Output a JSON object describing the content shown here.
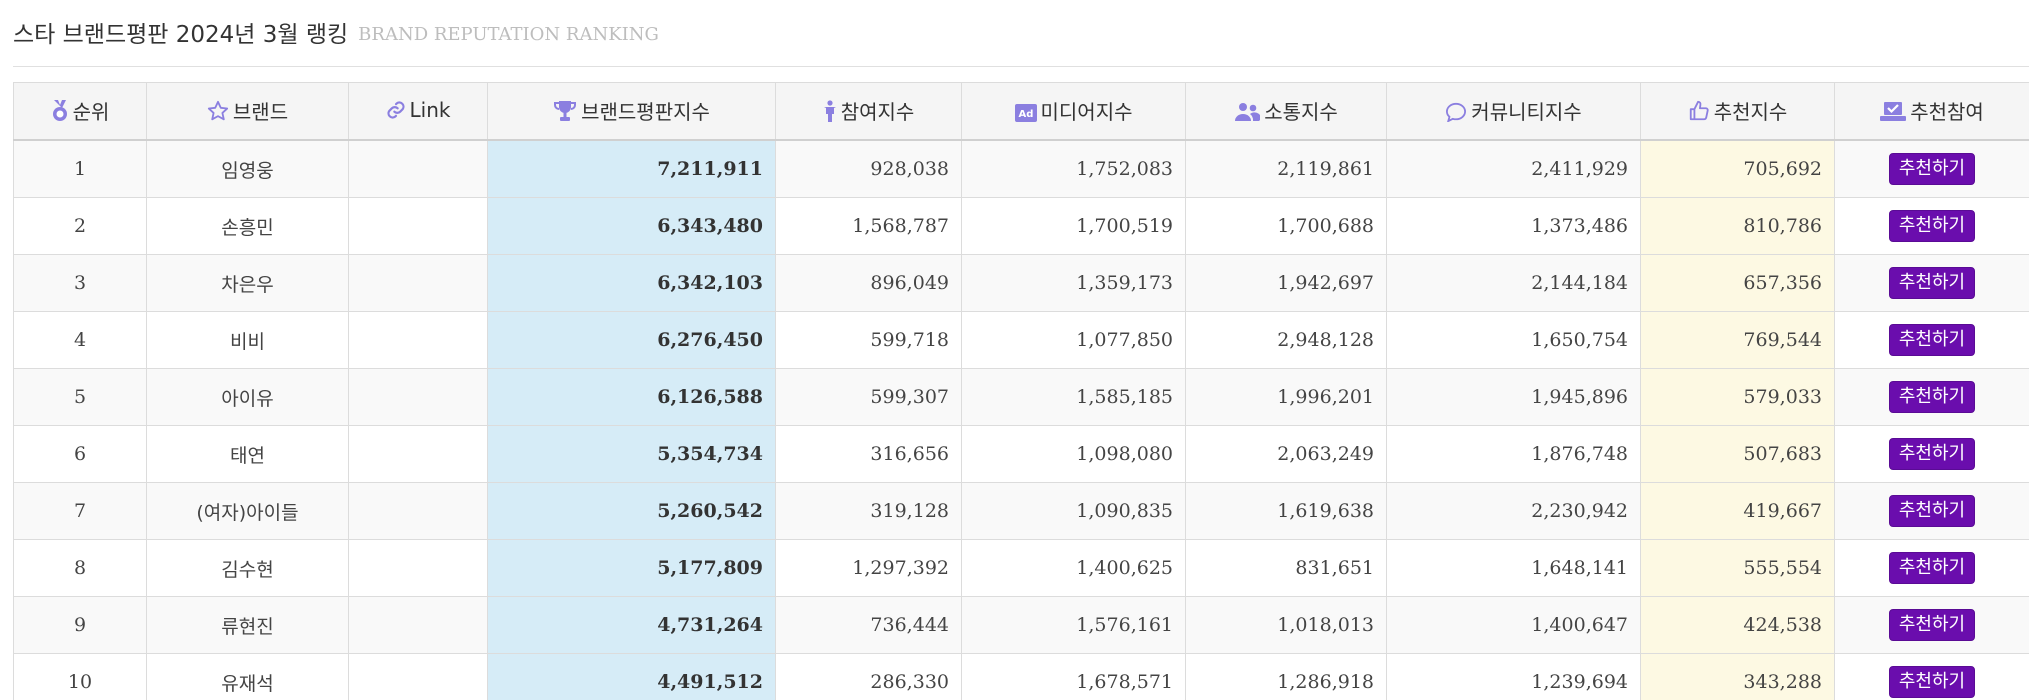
{
  "title": {
    "main": "스타 브랜드평판 2024년 3월 랭킹",
    "sub": "BRAND REPUTATION RANKING"
  },
  "colors": {
    "accent_icon": "#8b7fe0",
    "brand_score_bg": "#d6ecf7",
    "rec_score_bg": "#fdf9e3",
    "button_bg": "#6a0dad"
  },
  "columns": [
    {
      "label": "순위",
      "icon": "medal-icon"
    },
    {
      "label": "브랜드",
      "icon": "star-icon"
    },
    {
      "label": "Link",
      "icon": "link-icon"
    },
    {
      "label": "브랜드평판지수",
      "icon": "trophy-icon"
    },
    {
      "label": "참여지수",
      "icon": "person-icon"
    },
    {
      "label": "미디어지수",
      "icon": "ad-icon"
    },
    {
      "label": "소통지수",
      "icon": "users-icon"
    },
    {
      "label": "커뮤니티지수",
      "icon": "comment-icon"
    },
    {
      "label": "추천지수",
      "icon": "thumbs-up-icon"
    },
    {
      "label": "추천참여",
      "icon": "vote-icon"
    }
  ],
  "button_label": "추천하기",
  "rows": [
    {
      "rank": "1",
      "brand": "임영웅",
      "brand_index": "7,211,911",
      "participation": "928,038",
      "media": "1,752,083",
      "communication": "2,119,861",
      "community": "2,411,929",
      "recommend": "705,692"
    },
    {
      "rank": "2",
      "brand": "손흥민",
      "brand_index": "6,343,480",
      "participation": "1,568,787",
      "media": "1,700,519",
      "communication": "1,700,688",
      "community": "1,373,486",
      "recommend": "810,786"
    },
    {
      "rank": "3",
      "brand": "차은우",
      "brand_index": "6,342,103",
      "participation": "896,049",
      "media": "1,359,173",
      "communication": "1,942,697",
      "community": "2,144,184",
      "recommend": "657,356"
    },
    {
      "rank": "4",
      "brand": "비비",
      "brand_index": "6,276,450",
      "participation": "599,718",
      "media": "1,077,850",
      "communication": "2,948,128",
      "community": "1,650,754",
      "recommend": "769,544"
    },
    {
      "rank": "5",
      "brand": "아이유",
      "brand_index": "6,126,588",
      "participation": "599,307",
      "media": "1,585,185",
      "communication": "1,996,201",
      "community": "1,945,896",
      "recommend": "579,033"
    },
    {
      "rank": "6",
      "brand": "태연",
      "brand_index": "5,354,734",
      "participation": "316,656",
      "media": "1,098,080",
      "communication": "2,063,249",
      "community": "1,876,748",
      "recommend": "507,683"
    },
    {
      "rank": "7",
      "brand": "(여자)아이들",
      "brand_index": "5,260,542",
      "participation": "319,128",
      "media": "1,090,835",
      "communication": "1,619,638",
      "community": "2,230,942",
      "recommend": "419,667"
    },
    {
      "rank": "8",
      "brand": "김수현",
      "brand_index": "5,177,809",
      "participation": "1,297,392",
      "media": "1,400,625",
      "communication": "831,651",
      "community": "1,648,141",
      "recommend": "555,554"
    },
    {
      "rank": "9",
      "brand": "류현진",
      "brand_index": "4,731,264",
      "participation": "736,444",
      "media": "1,576,161",
      "communication": "1,018,013",
      "community": "1,400,647",
      "recommend": "424,538"
    },
    {
      "rank": "10",
      "brand": "유재석",
      "brand_index": "4,491,512",
      "participation": "286,330",
      "media": "1,678,571",
      "communication": "1,286,918",
      "community": "1,239,694",
      "recommend": "343,288"
    }
  ]
}
